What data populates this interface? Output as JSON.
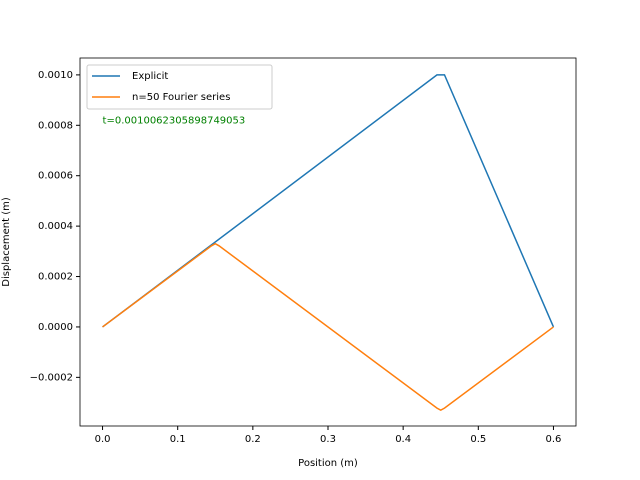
{
  "chart_data": {
    "type": "line",
    "xlabel": "Position (m)",
    "ylabel": "Displacement (m)",
    "annotation": "t=0.0010062305898749053",
    "annotation_color": "#008000",
    "annotation_x": 0.0,
    "annotation_y": 0.00082,
    "legend": "upper left",
    "xlim": [
      -0.03,
      0.63
    ],
    "ylim": [
      -0.000393,
      0.001067
    ],
    "xticks": [
      {
        "value": 0,
        "label": "0.0"
      },
      {
        "value": 0.1,
        "label": "0.1"
      },
      {
        "value": 0.2,
        "label": "0.2"
      },
      {
        "value": 0.3,
        "label": "0.3"
      },
      {
        "value": 0.4,
        "label": "0.4"
      },
      {
        "value": 0.5,
        "label": "0.5"
      },
      {
        "value": 0.6,
        "label": "0.6"
      }
    ],
    "yticks": [
      {
        "value": -0.0002,
        "label": "−0.0002"
      },
      {
        "value": 0,
        "label": "0.0000"
      },
      {
        "value": 0.0002,
        "label": "0.0002"
      },
      {
        "value": 0.0004,
        "label": "0.0004"
      },
      {
        "value": 0.0006,
        "label": "0.0006"
      },
      {
        "value": 0.0008,
        "label": "0.0008"
      },
      {
        "value": 0.001,
        "label": "0.0010"
      }
    ],
    "series": [
      {
        "name": "Explicit",
        "color": "#1f77b4",
        "x": [
          0,
          0.445,
          0.455,
          0.6
        ],
        "values": [
          0,
          0.001,
          0.001,
          0
        ]
      },
      {
        "name": "n=50 Fourier series",
        "color": "#ff7f0e",
        "x": [
          0,
          0.145,
          0.15,
          0.155,
          0.445,
          0.45,
          0.455,
          0.6
        ],
        "values": [
          0,
          0.000322,
          0.00033,
          0.000322,
          -0.000322,
          -0.00033,
          -0.000322,
          0
        ]
      }
    ]
  }
}
